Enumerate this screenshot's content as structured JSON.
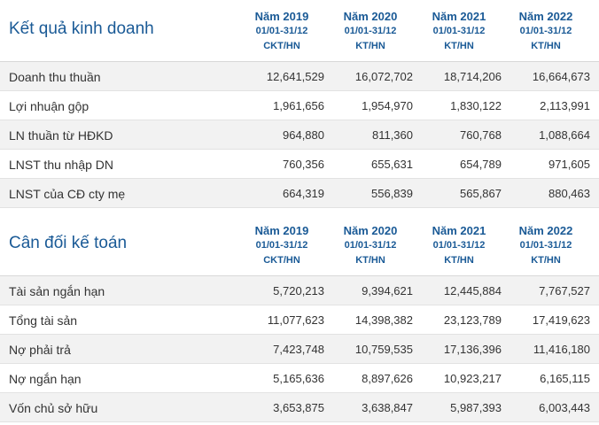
{
  "business": {
    "title": "Kết quả kinh doanh",
    "columns": [
      {
        "year": "Năm 2019",
        "range": "01/01-31/12",
        "type": "CKT/HN"
      },
      {
        "year": "Năm 2020",
        "range": "01/01-31/12",
        "type": "KT/HN"
      },
      {
        "year": "Năm 2021",
        "range": "01/01-31/12",
        "type": "KT/HN"
      },
      {
        "year": "Năm 2022",
        "range": "01/01-31/12",
        "type": "KT/HN"
      }
    ],
    "rows": [
      {
        "label": "Doanh thu thuần",
        "values": [
          "12,641,529",
          "16,072,702",
          "18,714,206",
          "16,664,673"
        ]
      },
      {
        "label": "Lợi nhuận gộp",
        "values": [
          "1,961,656",
          "1,954,970",
          "1,830,122",
          "2,113,991"
        ]
      },
      {
        "label": "LN thuần từ HĐKD",
        "values": [
          "964,880",
          "811,360",
          "760,768",
          "1,088,664"
        ]
      },
      {
        "label": "LNST thu nhập DN",
        "values": [
          "760,356",
          "655,631",
          "654,789",
          "971,605"
        ]
      },
      {
        "label": "LNST của CĐ cty mẹ",
        "values": [
          "664,319",
          "556,839",
          "565,867",
          "880,463"
        ]
      }
    ]
  },
  "balance": {
    "title": "Cân đối kế toán",
    "columns": [
      {
        "year": "Năm 2019",
        "range": "01/01-31/12",
        "type": "CKT/HN"
      },
      {
        "year": "Năm 2020",
        "range": "01/01-31/12",
        "type": "KT/HN"
      },
      {
        "year": "Năm 2021",
        "range": "01/01-31/12",
        "type": "KT/HN"
      },
      {
        "year": "Năm 2022",
        "range": "01/01-31/12",
        "type": "KT/HN"
      }
    ],
    "rows": [
      {
        "label": "Tài sản ngắn hạn",
        "values": [
          "5,720,213",
          "9,394,621",
          "12,445,884",
          "7,767,527"
        ]
      },
      {
        "label": "Tổng tài sản",
        "values": [
          "11,077,623",
          "14,398,382",
          "23,123,789",
          "17,419,623"
        ]
      },
      {
        "label": "Nợ phải trả",
        "values": [
          "7,423,748",
          "10,759,535",
          "17,136,396",
          "11,416,180"
        ]
      },
      {
        "label": "Nợ ngắn hạn",
        "values": [
          "5,165,636",
          "8,897,626",
          "10,923,217",
          "6,165,115"
        ]
      },
      {
        "label": "Vốn chủ sở hữu",
        "values": [
          "3,653,875",
          "3,638,847",
          "5,987,393",
          "6,003,443"
        ]
      }
    ]
  }
}
